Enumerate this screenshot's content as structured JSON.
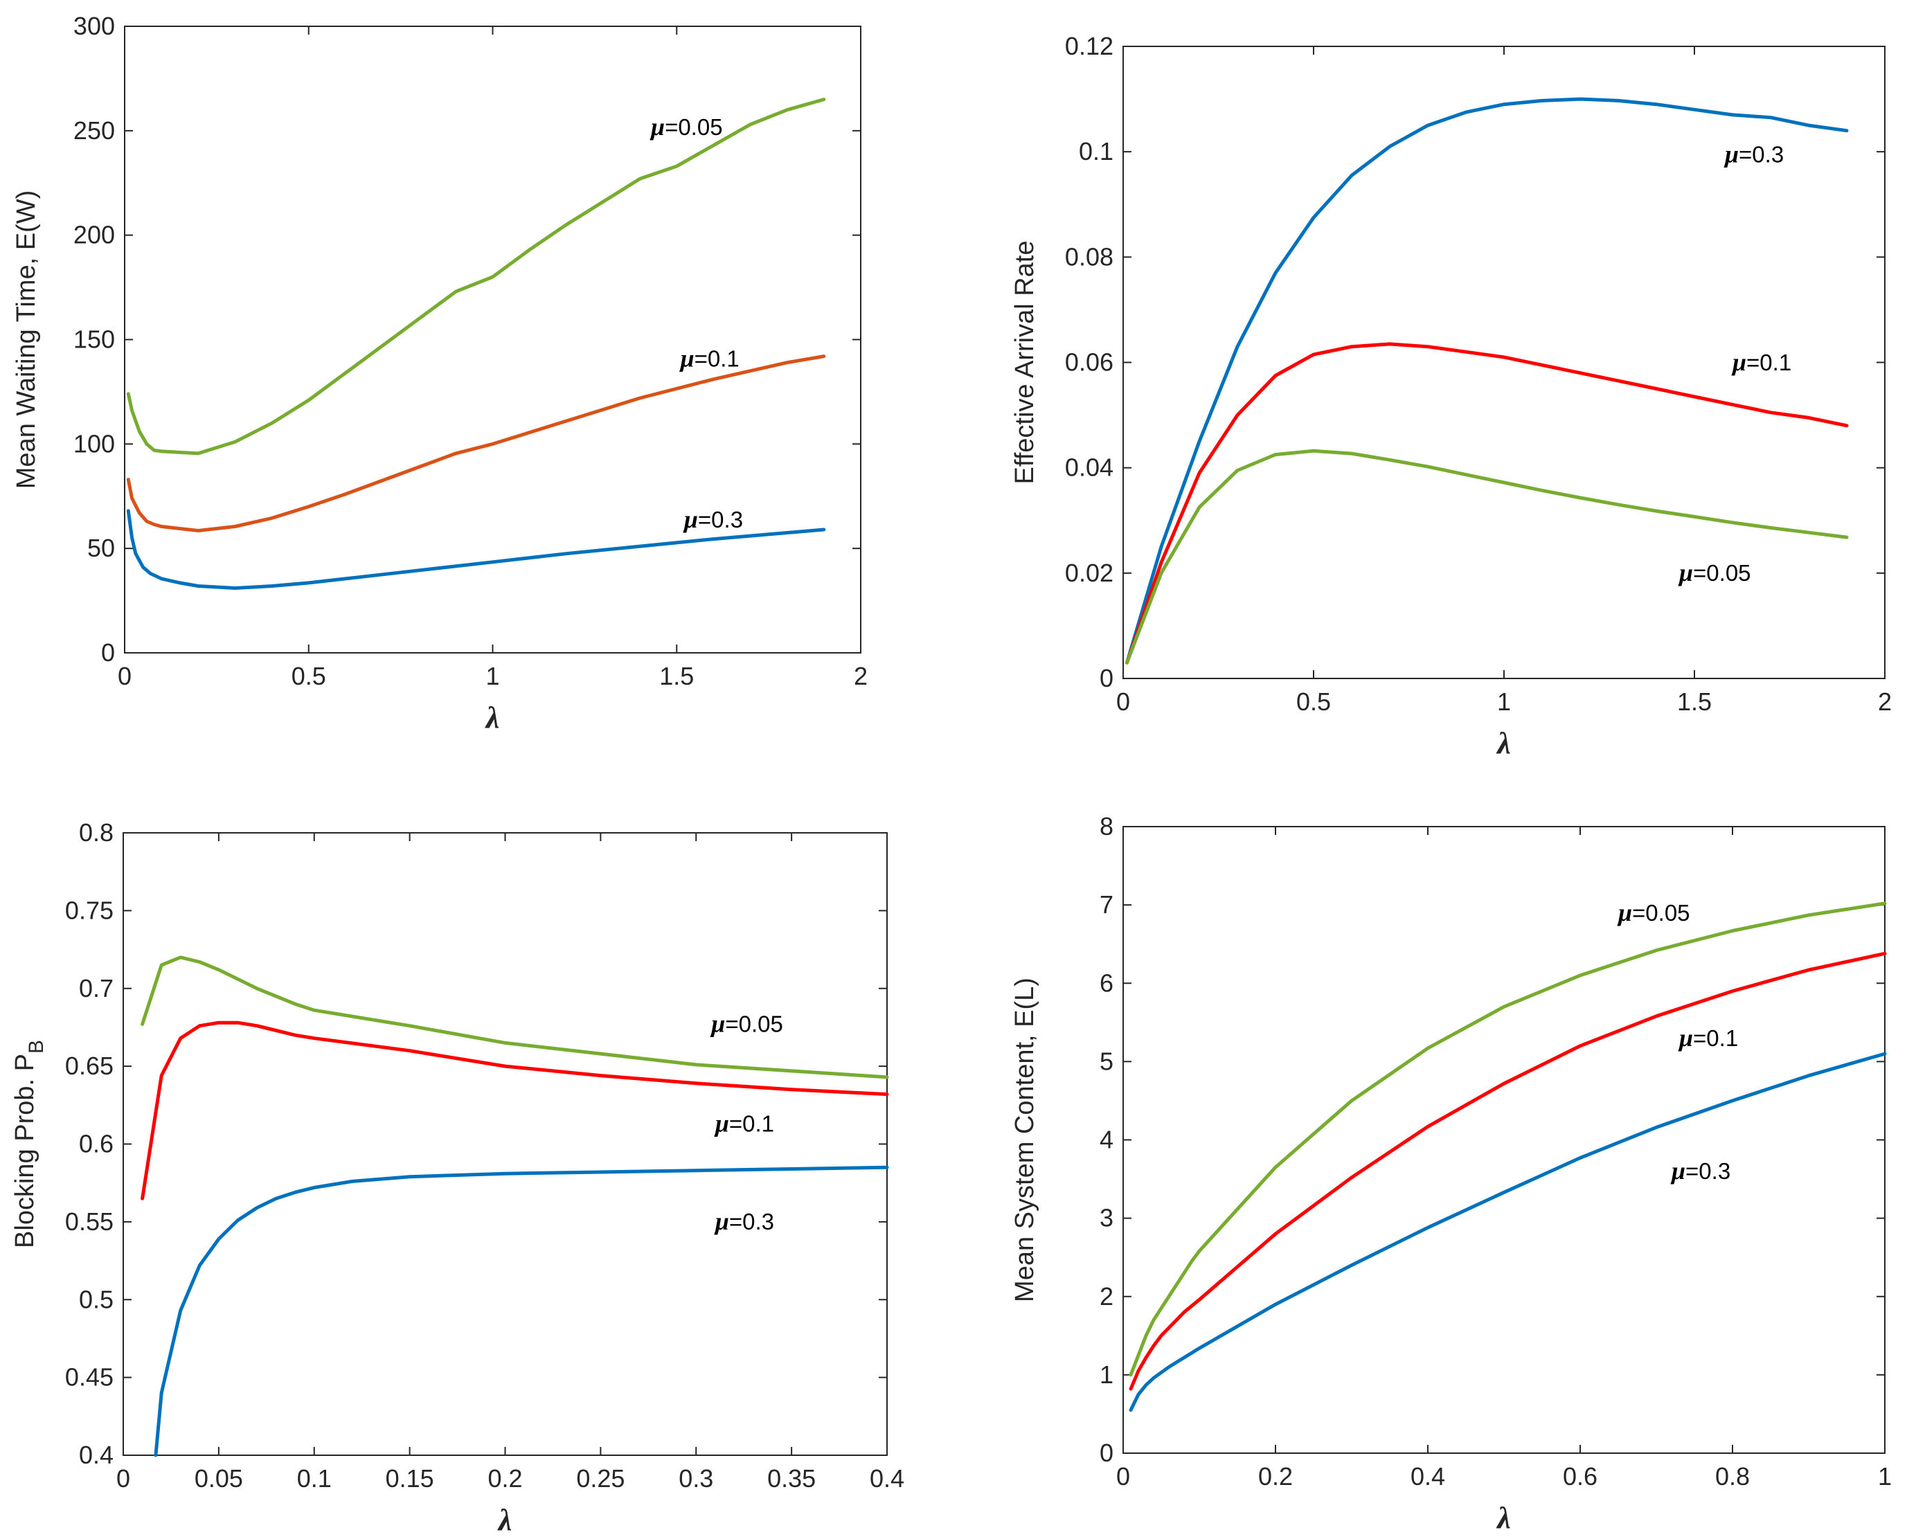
{
  "colors": {
    "green": "#77AC30",
    "orange": "#D95319",
    "blue": "#0072BD",
    "red": "#FF0000",
    "axis": "#262626"
  },
  "chart_data": [
    {
      "type": "line",
      "xlabel": "λ",
      "ylabel": "Mean Waiting Time, E(W)",
      "xlim": [
        0,
        2
      ],
      "ylim": [
        0,
        300
      ],
      "xticks": [
        0,
        0.5,
        1,
        1.5,
        2
      ],
      "xtick_labels": [
        "0",
        "0.5",
        "1",
        "1.5",
        "2"
      ],
      "yticks": [
        0,
        50,
        100,
        150,
        200,
        250,
        300
      ],
      "ytick_labels": [
        "0",
        "50",
        "100",
        "150",
        "200",
        "250",
        "300"
      ],
      "series": [
        {
          "name": "μ=0.05",
          "color": "#77AC30",
          "x": [
            0.01,
            0.02,
            0.04,
            0.06,
            0.08,
            0.1,
            0.2,
            0.3,
            0.4,
            0.5,
            0.6,
            0.7,
            0.8,
            0.9,
            1.0,
            1.1,
            1.2,
            1.3,
            1.4,
            1.5,
            1.6,
            1.7,
            1.8,
            1.9
          ],
          "y": [
            124,
            116,
            106,
            100,
            97,
            96.5,
            95.5,
            101,
            110,
            121,
            134,
            147,
            160,
            173,
            180,
            193,
            205,
            216,
            227,
            233,
            243,
            253,
            260,
            265
          ]
        },
        {
          "name": "μ=0.1",
          "color": "#D95319",
          "x": [
            0.01,
            0.02,
            0.04,
            0.06,
            0.08,
            0.1,
            0.2,
            0.3,
            0.4,
            0.5,
            0.6,
            0.7,
            0.8,
            0.9,
            1.0,
            1.2,
            1.4,
            1.6,
            1.8,
            1.9
          ],
          "y": [
            83,
            74,
            67,
            63,
            61.5,
            60.5,
            58.5,
            60.5,
            64.5,
            70,
            76,
            82.5,
            89,
            95.5,
            100,
            111,
            122,
            131,
            139,
            142
          ]
        },
        {
          "name": "μ=0.3",
          "color": "#0072BD",
          "x": [
            0.01,
            0.02,
            0.03,
            0.05,
            0.07,
            0.1,
            0.15,
            0.2,
            0.3,
            0.4,
            0.5,
            0.6,
            0.8,
            1.0,
            1.2,
            1.4,
            1.6,
            1.8,
            1.9
          ],
          "y": [
            68,
            55,
            47.5,
            41,
            38,
            35.5,
            33.5,
            32,
            31,
            32,
            33.5,
            35.5,
            39.5,
            43.5,
            47.5,
            51,
            54.5,
            57.5,
            59
          ]
        }
      ],
      "annotations": [
        {
          "prefix": "μ",
          "text": "=0.05",
          "x": 1.43,
          "y": 248
        },
        {
          "prefix": "μ",
          "text": "=0.1",
          "x": 1.51,
          "y": 137
        },
        {
          "prefix": "μ",
          "text": "=0.3",
          "x": 1.52,
          "y": 60
        }
      ]
    },
    {
      "type": "line",
      "xlabel": "λ",
      "ylabel": "Effective Arrival Rate",
      "xlim": [
        0,
        2
      ],
      "ylim": [
        0,
        0.12
      ],
      "xticks": [
        0,
        0.5,
        1,
        1.5,
        2
      ],
      "xtick_labels": [
        "0",
        "0.5",
        "1",
        "1.5",
        "2"
      ],
      "yticks": [
        0,
        0.02,
        0.04,
        0.06,
        0.08,
        0.1,
        0.12
      ],
      "ytick_labels": [
        "0",
        "0.02",
        "0.04",
        "0.06",
        "0.08",
        "0.1",
        "0.12"
      ],
      "series": [
        {
          "name": "μ=0.3",
          "color": "#0072BD",
          "x": [
            0.01,
            0.1,
            0.2,
            0.3,
            0.4,
            0.5,
            0.6,
            0.7,
            0.8,
            0.9,
            1.0,
            1.1,
            1.2,
            1.3,
            1.4,
            1.5,
            1.6,
            1.7,
            1.8,
            1.9
          ],
          "y": [
            0.003,
            0.025,
            0.045,
            0.063,
            0.077,
            0.0875,
            0.0955,
            0.101,
            0.105,
            0.1075,
            0.109,
            0.1097,
            0.11,
            0.1097,
            0.109,
            0.108,
            0.107,
            0.1065,
            0.105,
            0.104
          ]
        },
        {
          "name": "μ=0.1",
          "color": "#FF0000",
          "x": [
            0.01,
            0.1,
            0.2,
            0.3,
            0.4,
            0.5,
            0.6,
            0.7,
            0.8,
            0.9,
            1.0,
            1.1,
            1.2,
            1.3,
            1.4,
            1.5,
            1.6,
            1.7,
            1.8,
            1.9
          ],
          "y": [
            0.003,
            0.022,
            0.039,
            0.05,
            0.0575,
            0.0615,
            0.063,
            0.0635,
            0.063,
            0.062,
            0.061,
            0.0595,
            0.058,
            0.0565,
            0.055,
            0.0535,
            0.052,
            0.0505,
            0.0495,
            0.048
          ]
        },
        {
          "name": "μ=0.05",
          "color": "#77AC30",
          "x": [
            0.01,
            0.1,
            0.2,
            0.3,
            0.4,
            0.5,
            0.6,
            0.7,
            0.8,
            0.9,
            1.0,
            1.1,
            1.2,
            1.3,
            1.4,
            1.5,
            1.6,
            1.7,
            1.8,
            1.9
          ],
          "y": [
            0.003,
            0.02,
            0.0325,
            0.0395,
            0.0425,
            0.0432,
            0.0427,
            0.0415,
            0.0402,
            0.0387,
            0.0372,
            0.0357,
            0.0343,
            0.033,
            0.0318,
            0.0307,
            0.0296,
            0.0286,
            0.0277,
            0.0268
          ]
        }
      ],
      "annotations": [
        {
          "prefix": "μ",
          "text": "=0.3",
          "x": 1.58,
          "y": 0.098
        },
        {
          "prefix": "μ",
          "text": "=0.1",
          "x": 1.6,
          "y": 0.0585
        },
        {
          "prefix": "μ",
          "text": "=0.05",
          "x": 1.46,
          "y": 0.0185
        }
      ]
    },
    {
      "type": "line",
      "xlabel": "λ",
      "ylabel": "Blocking Prob. P",
      "ylabel_subscript": "B",
      "xlim": [
        0,
        0.4
      ],
      "ylim": [
        0.4,
        0.8
      ],
      "xticks": [
        0,
        0.05,
        0.1,
        0.15,
        0.2,
        0.25,
        0.3,
        0.35,
        0.4
      ],
      "xtick_labels": [
        "0",
        "0.05",
        "0.1",
        "0.15",
        "0.2",
        "0.25",
        "0.3",
        "0.35",
        "0.4"
      ],
      "yticks": [
        0.4,
        0.45,
        0.5,
        0.55,
        0.6,
        0.65,
        0.7,
        0.75,
        0.8
      ],
      "ytick_labels": [
        "0.4",
        "0.45",
        "0.5",
        "0.55",
        "0.6",
        "0.65",
        "0.7",
        "0.75",
        "0.8"
      ],
      "series": [
        {
          "name": "μ=0.05",
          "color": "#77AC30",
          "x": [
            0.01,
            0.02,
            0.03,
            0.04,
            0.05,
            0.06,
            0.07,
            0.08,
            0.09,
            0.1,
            0.15,
            0.2,
            0.25,
            0.3,
            0.35,
            0.4
          ],
          "y": [
            0.677,
            0.715,
            0.72,
            0.717,
            0.712,
            0.706,
            0.7,
            0.695,
            0.69,
            0.686,
            0.676,
            0.665,
            0.658,
            0.651,
            0.647,
            0.643
          ]
        },
        {
          "name": "μ=0.1",
          "color": "#FF0000",
          "x": [
            0.01,
            0.02,
            0.03,
            0.04,
            0.05,
            0.06,
            0.07,
            0.08,
            0.09,
            0.1,
            0.15,
            0.2,
            0.25,
            0.3,
            0.35,
            0.4
          ],
          "y": [
            0.565,
            0.644,
            0.668,
            0.676,
            0.678,
            0.678,
            0.676,
            0.673,
            0.67,
            0.668,
            0.66,
            0.65,
            0.644,
            0.639,
            0.635,
            0.632
          ]
        },
        {
          "name": "μ=0.3",
          "color": "#0072BD",
          "x": [
            0.017,
            0.02,
            0.03,
            0.04,
            0.05,
            0.06,
            0.07,
            0.08,
            0.09,
            0.1,
            0.12,
            0.15,
            0.2,
            0.25,
            0.3,
            0.35,
            0.4
          ],
          "y": [
            0.4,
            0.44,
            0.493,
            0.522,
            0.539,
            0.551,
            0.559,
            0.565,
            0.569,
            0.572,
            0.576,
            0.579,
            0.581,
            0.582,
            0.583,
            0.584,
            0.585
          ]
        }
      ],
      "annotations": [
        {
          "prefix": "μ",
          "text": "=0.05",
          "x": 0.308,
          "y": 0.672
        },
        {
          "prefix": "μ",
          "text": "=0.1",
          "x": 0.31,
          "y": 0.608
        },
        {
          "prefix": "μ",
          "text": "=0.3",
          "x": 0.31,
          "y": 0.545
        }
      ]
    },
    {
      "type": "line",
      "xlabel": "λ",
      "ylabel": "Mean System Content, E(L)",
      "xlim": [
        0,
        1
      ],
      "ylim": [
        0,
        8
      ],
      "xticks": [
        0,
        0.2,
        0.4,
        0.6,
        0.8,
        1
      ],
      "xtick_labels": [
        "0",
        "0.2",
        "0.4",
        "0.6",
        "0.8",
        "1"
      ],
      "yticks": [
        0,
        1,
        2,
        3,
        4,
        5,
        6,
        7,
        8
      ],
      "ytick_labels": [
        "0",
        "1",
        "2",
        "3",
        "4",
        "5",
        "6",
        "7",
        "8"
      ],
      "series": [
        {
          "name": "μ=0.05",
          "color": "#77AC30",
          "x": [
            0.01,
            0.02,
            0.03,
            0.04,
            0.05,
            0.06,
            0.07,
            0.08,
            0.09,
            0.1,
            0.2,
            0.3,
            0.4,
            0.5,
            0.6,
            0.7,
            0.8,
            0.9,
            1.0
          ],
          "y": [
            1.0,
            1.25,
            1.5,
            1.7,
            1.85,
            2.0,
            2.15,
            2.3,
            2.45,
            2.58,
            3.65,
            4.5,
            5.17,
            5.7,
            6.1,
            6.42,
            6.67,
            6.87,
            7.02
          ]
        },
        {
          "name": "μ=0.1",
          "color": "#FF0000",
          "x": [
            0.01,
            0.02,
            0.03,
            0.04,
            0.05,
            0.06,
            0.07,
            0.08,
            0.09,
            0.1,
            0.2,
            0.3,
            0.4,
            0.5,
            0.6,
            0.7,
            0.8,
            0.9,
            1.0
          ],
          "y": [
            0.82,
            1.05,
            1.22,
            1.37,
            1.5,
            1.6,
            1.7,
            1.8,
            1.88,
            1.96,
            2.8,
            3.52,
            4.17,
            4.72,
            5.2,
            5.58,
            5.9,
            6.17,
            6.38
          ]
        },
        {
          "name": "μ=0.3",
          "color": "#0072BD",
          "x": [
            0.01,
            0.02,
            0.03,
            0.04,
            0.05,
            0.06,
            0.07,
            0.08,
            0.09,
            0.1,
            0.2,
            0.3,
            0.4,
            0.5,
            0.6,
            0.7,
            0.8,
            0.9,
            1.0
          ],
          "y": [
            0.55,
            0.75,
            0.87,
            0.96,
            1.03,
            1.1,
            1.16,
            1.22,
            1.28,
            1.34,
            1.9,
            2.4,
            2.88,
            3.33,
            3.77,
            4.16,
            4.5,
            4.82,
            5.1
          ]
        }
      ],
      "annotations": [
        {
          "prefix": "μ",
          "text": "=0.05",
          "x": 0.65,
          "y": 6.8
        },
        {
          "prefix": "μ",
          "text": "=0.1",
          "x": 0.73,
          "y": 5.2
        },
        {
          "prefix": "μ",
          "text": "=0.3",
          "x": 0.72,
          "y": 3.5
        }
      ]
    }
  ]
}
